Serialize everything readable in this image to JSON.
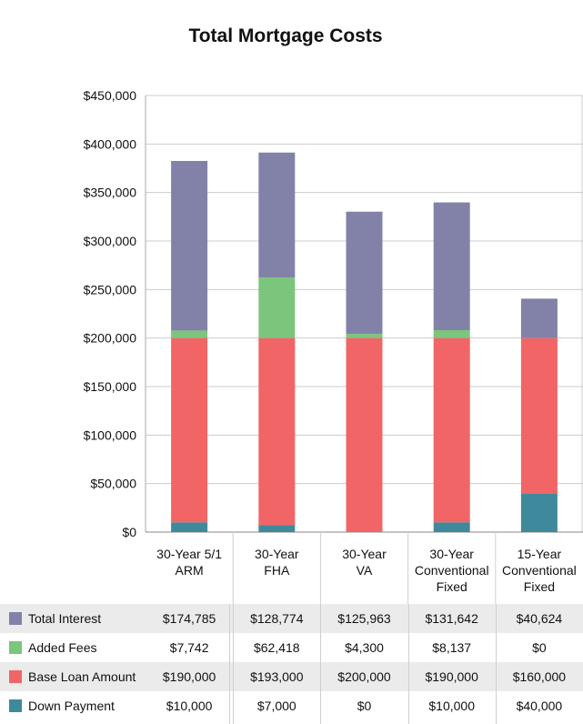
{
  "chart_data": {
    "type": "bar",
    "stacked": true,
    "title": "Total Mortgage Costs",
    "categories": [
      "30-Year 5/1 ARM",
      "30-Year FHA",
      "30-Year VA",
      "30-Year Conventional Fixed",
      "15-Year Conventional Fixed"
    ],
    "category_lines": [
      [
        "30-Year 5/1",
        "ARM"
      ],
      [
        "30-Year",
        "FHA"
      ],
      [
        "30-Year",
        "VA"
      ],
      [
        "30-Year",
        "Conventional",
        "Fixed"
      ],
      [
        "15-Year",
        "Conventional",
        "Fixed"
      ]
    ],
    "ylim": [
      0,
      450000
    ],
    "yticks": [
      0,
      50000,
      100000,
      150000,
      200000,
      250000,
      300000,
      350000,
      400000,
      450000
    ],
    "ytick_labels": [
      "$0",
      "$50,000",
      "$100,000",
      "$150,000",
      "$200,000",
      "$250,000",
      "$300,000",
      "$350,000",
      "$400,000",
      "$450,000"
    ],
    "grid": true,
    "series": [
      {
        "name": "Down Payment",
        "color": "#3e8a9c",
        "values": [
          10000,
          7000,
          0,
          10000,
          40000
        ],
        "labels": [
          "$10,000",
          "$7,000",
          "$0",
          "$10,000",
          "$40,000"
        ]
      },
      {
        "name": "Base Loan Amount",
        "color": "#f16566",
        "values": [
          190000,
          193000,
          200000,
          190000,
          160000
        ],
        "labels": [
          "$190,000",
          "$193,000",
          "$200,000",
          "$190,000",
          "$160,000"
        ]
      },
      {
        "name": "Added Fees",
        "color": "#7cc57c",
        "values": [
          7742,
          62418,
          4300,
          8137,
          0
        ],
        "labels": [
          "$7,742",
          "$62,418",
          "$4,300",
          "$8,137",
          "$0"
        ]
      },
      {
        "name": "Total Interest",
        "color": "#8282a8",
        "values": [
          174785,
          128774,
          125963,
          131642,
          40624
        ],
        "labels": [
          "$174,785",
          "$128,774",
          "$125,963",
          "$131,642",
          "$40,624"
        ]
      }
    ],
    "table_order": [
      "Total Interest",
      "Added Fees",
      "Base Loan Amount",
      "Down Payment"
    ]
  }
}
